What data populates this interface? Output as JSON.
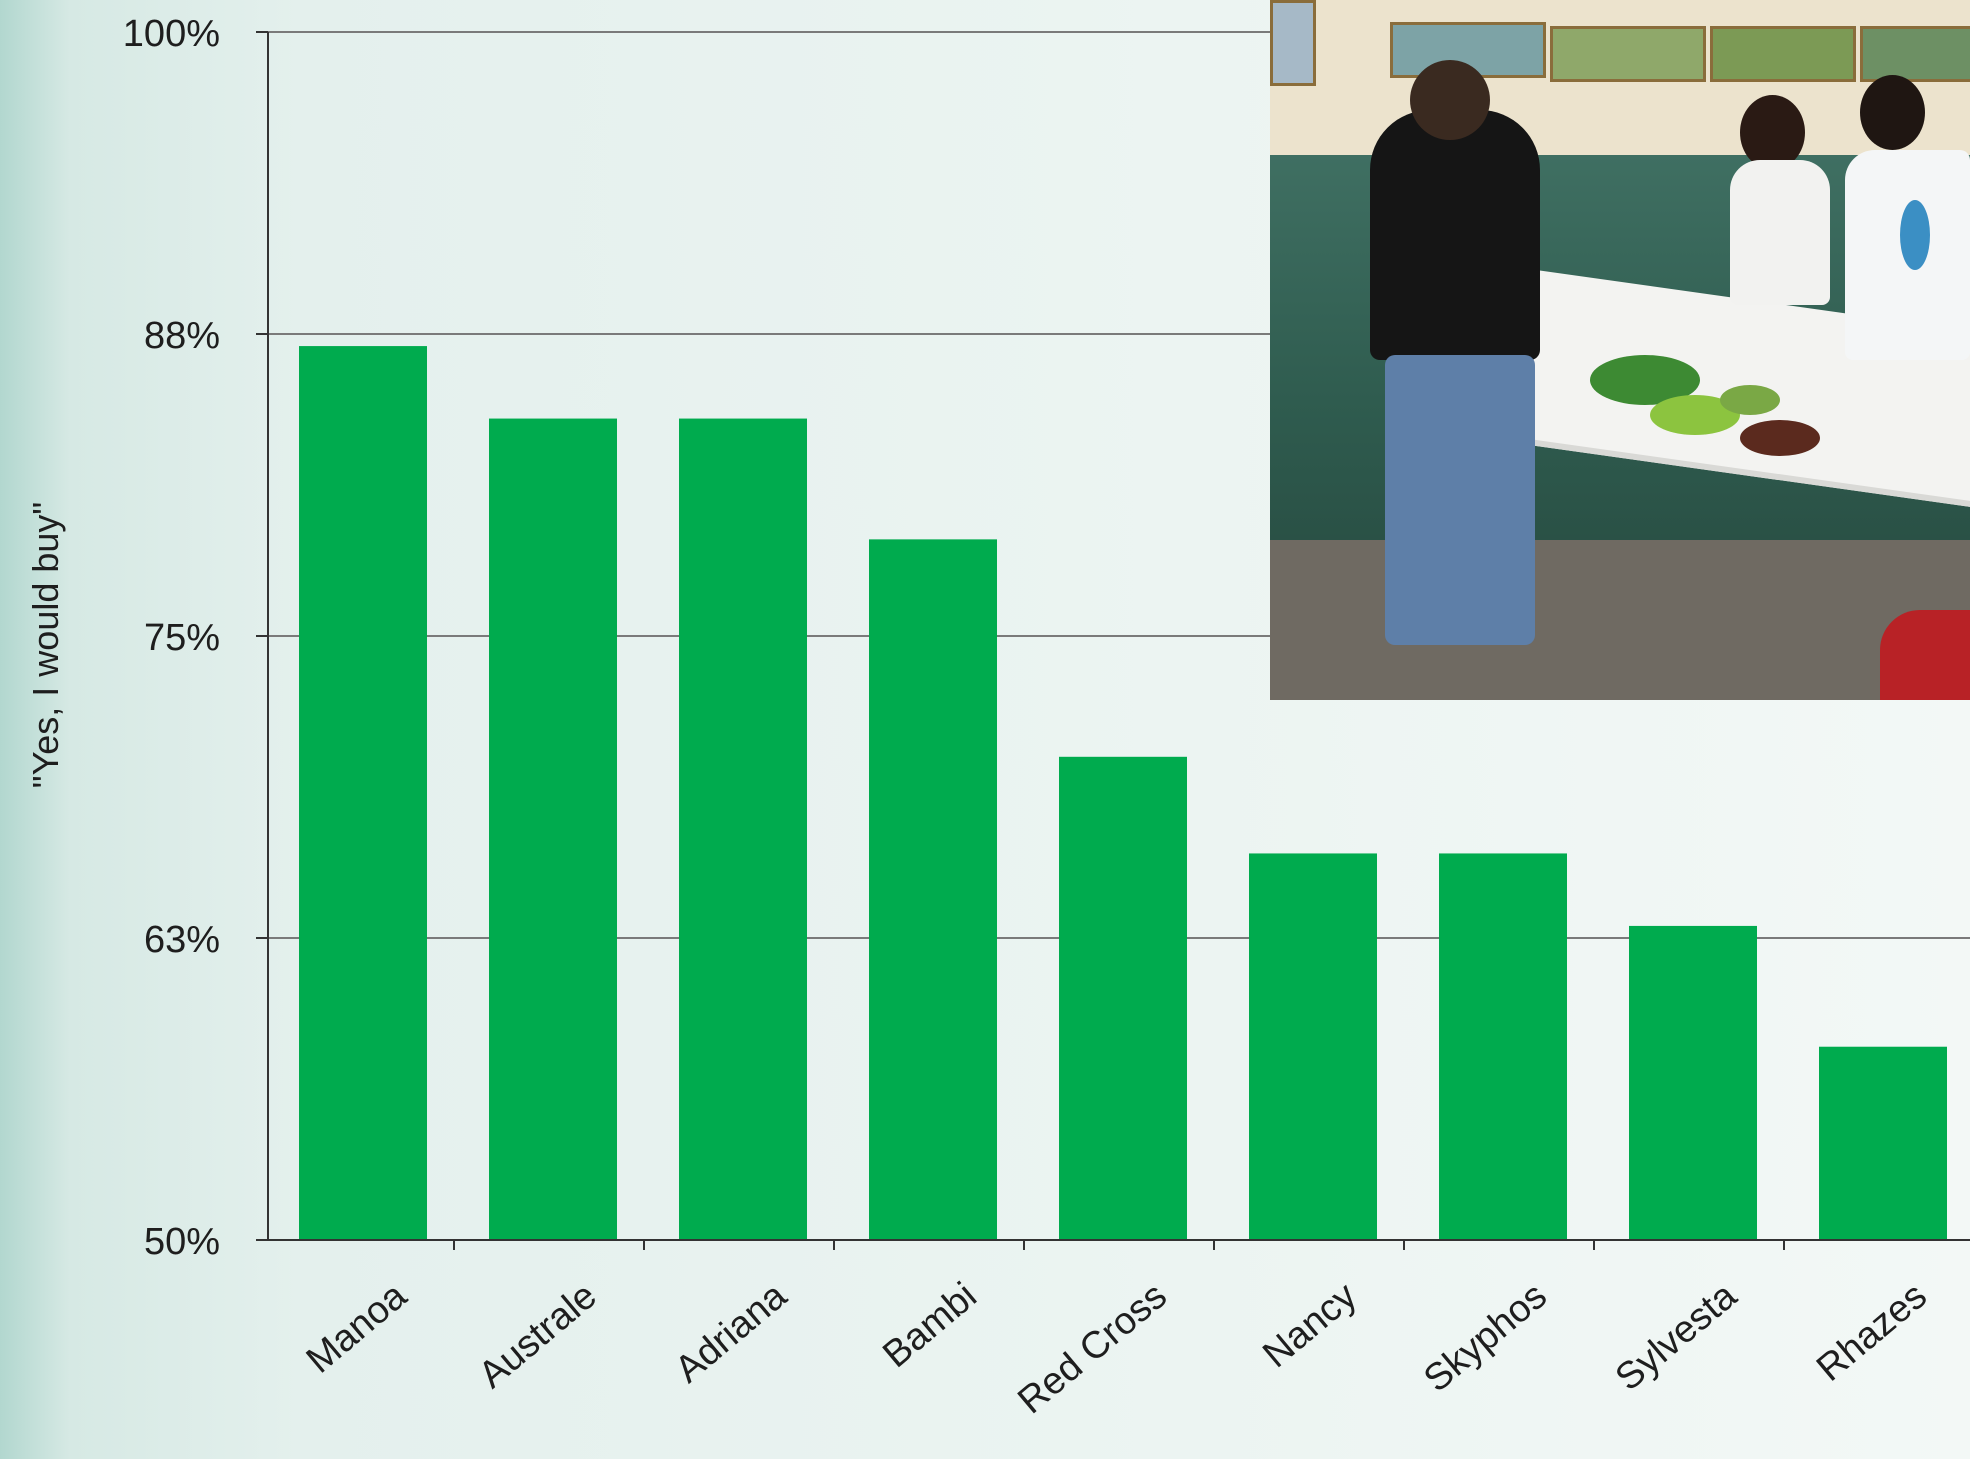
{
  "chart_data": {
    "type": "bar",
    "title": "",
    "xlabel": "",
    "ylabel": "\"Yes, I would buy\"",
    "ylim": [
      50,
      100
    ],
    "yticks": [
      "50%",
      "63%",
      "75%",
      "88%",
      "100%"
    ],
    "ytick_values": [
      50,
      62.5,
      75,
      87.5,
      100
    ],
    "categories": [
      "Manoa",
      "Australe",
      "Adriana",
      "Bambi",
      "Red Cross",
      "Nancy",
      "Skyphos",
      "Sylvesta",
      "Rhazes"
    ],
    "values": [
      87,
      84,
      84,
      79,
      70,
      66,
      66,
      63,
      58
    ],
    "bar_color": "#00ab4e",
    "grid": true
  },
  "photo": {
    "icon": "market-stall-photo"
  }
}
